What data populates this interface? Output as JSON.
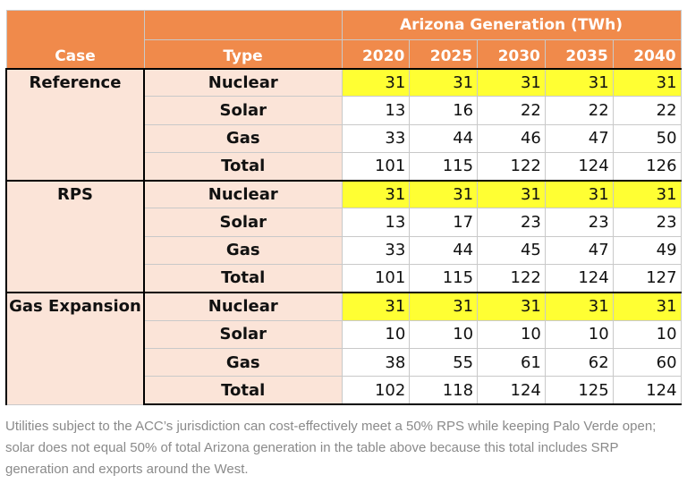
{
  "header": {
    "group_title": "Arizona Generation (TWh)",
    "case_label": "Case",
    "type_label": "Type",
    "years": [
      "2020",
      "2025",
      "2030",
      "2035",
      "2040"
    ]
  },
  "cases": [
    {
      "name": "Reference",
      "rows": [
        {
          "type": "Nuclear",
          "values": [
            "31",
            "31",
            "31",
            "31",
            "31"
          ]
        },
        {
          "type": "Solar",
          "values": [
            "13",
            "16",
            "22",
            "22",
            "22"
          ]
        },
        {
          "type": "Gas",
          "values": [
            "33",
            "44",
            "46",
            "47",
            "50"
          ]
        },
        {
          "type": "Total",
          "values": [
            "101",
            "115",
            "122",
            "124",
            "126"
          ]
        }
      ]
    },
    {
      "name": "RPS",
      "rows": [
        {
          "type": "Nuclear",
          "values": [
            "31",
            "31",
            "31",
            "31",
            "31"
          ]
        },
        {
          "type": "Solar",
          "values": [
            "13",
            "17",
            "23",
            "23",
            "23"
          ]
        },
        {
          "type": "Gas",
          "values": [
            "33",
            "44",
            "45",
            "47",
            "49"
          ]
        },
        {
          "type": "Total",
          "values": [
            "101",
            "115",
            "122",
            "124",
            "127"
          ]
        }
      ]
    },
    {
      "name": "Gas Expansion",
      "rows": [
        {
          "type": "Nuclear",
          "values": [
            "31",
            "31",
            "31",
            "31",
            "31"
          ]
        },
        {
          "type": "Solar",
          "values": [
            "10",
            "10",
            "10",
            "10",
            "10"
          ]
        },
        {
          "type": "Gas",
          "values": [
            "38",
            "55",
            "61",
            "62",
            "60"
          ]
        },
        {
          "type": "Total",
          "values": [
            "102",
            "118",
            "124",
            "125",
            "124"
          ]
        }
      ]
    }
  ],
  "caption": "Utilities subject to the ACC’s jurisdiction can cost-effectively meet a 50% RPS while keeping Palo Verde open; solar does not equal 50% of total Arizona generation in the table above because this total includes SRP generation and exports around the West.",
  "colors": {
    "header_bg": "#f08a4b",
    "label_bg": "#fbe4d8",
    "nuclear_highlight": "#ffff33"
  }
}
